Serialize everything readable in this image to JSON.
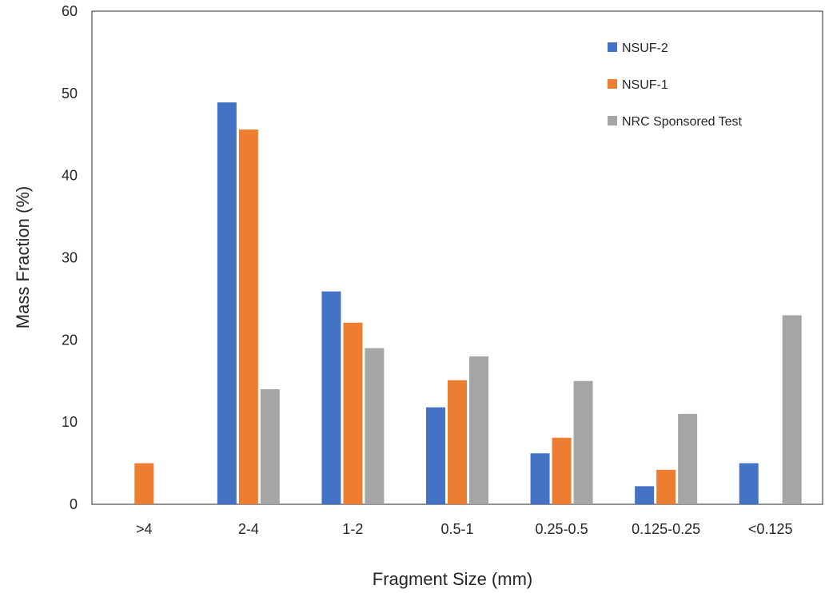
{
  "chart_data": {
    "type": "bar",
    "title": "",
    "xlabel": "Fragment Size (mm)",
    "ylabel": "Mass Fraction (%)",
    "ylim": [
      0,
      60
    ],
    "yticks": [
      0,
      10,
      20,
      30,
      40,
      50,
      60
    ],
    "grid": false,
    "legend_position": "top-right",
    "categories": [
      ">4",
      "2-4",
      "1-2",
      "0.5-1",
      "0.25-0.5",
      "0.125-0.25",
      "<0.125"
    ],
    "series": [
      {
        "name": "NSUF-2",
        "color": "#4472C4",
        "values": [
          0,
          48.9,
          25.9,
          11.8,
          6.2,
          2.2,
          5.0
        ]
      },
      {
        "name": "NSUF-1",
        "color": "#ED7D31",
        "values": [
          5.0,
          45.6,
          22.1,
          15.1,
          8.1,
          4.2,
          0
        ]
      },
      {
        "name": "NRC Sponsored Test",
        "color": "#A5A5A5",
        "values": [
          0,
          14.0,
          19.0,
          18.0,
          15.0,
          11.0,
          23.0
        ]
      }
    ]
  }
}
